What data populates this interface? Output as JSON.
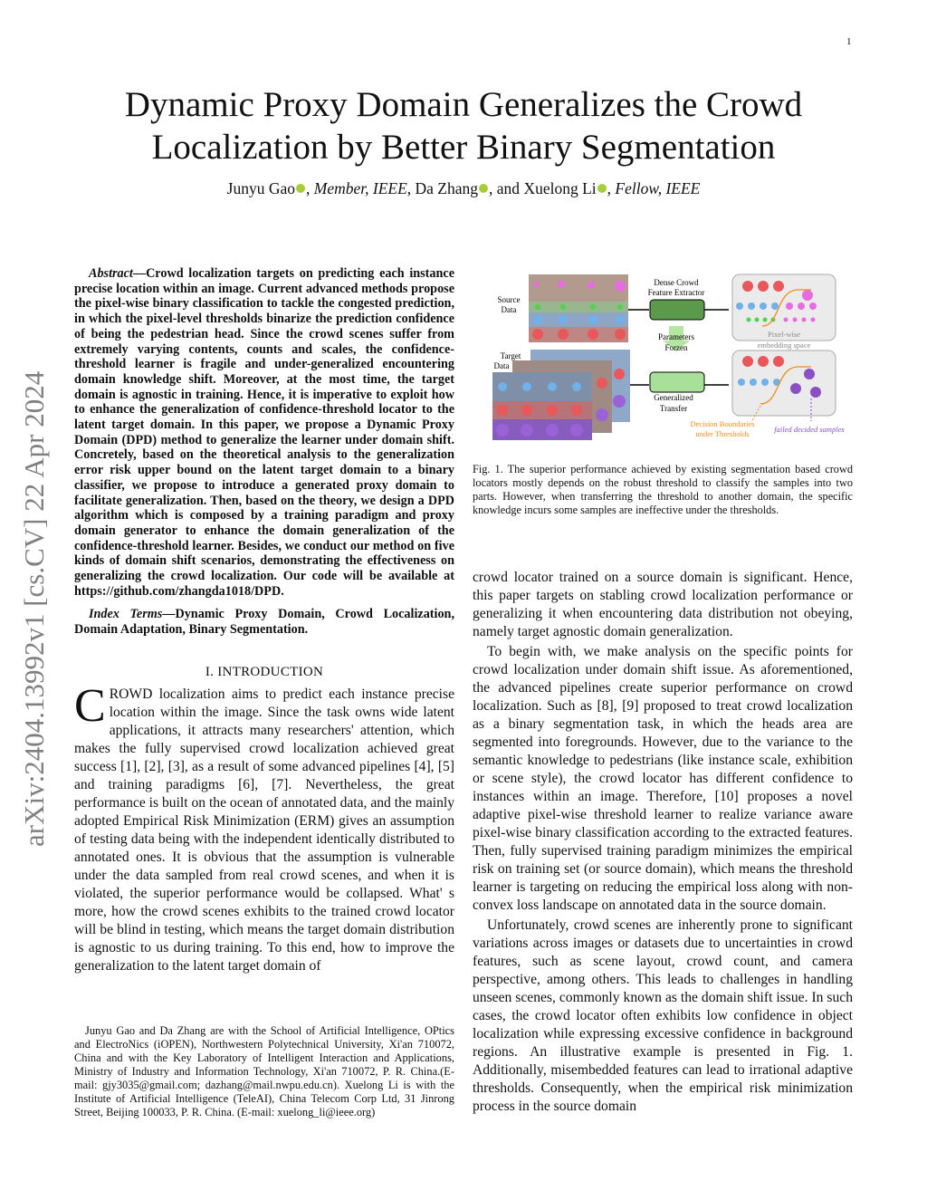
{
  "page_number": "1",
  "arxiv_stamp": "arXiv:2404.13992v1  [cs.CV]  22 Apr 2024",
  "title": "Dynamic Proxy Domain Generalizes the Crowd Localization by Better Binary Segmentation",
  "authors": {
    "a1": "Junyu Gao",
    "a1_role": "Member, IEEE",
    "a2": "Da Zhang",
    "a3": "Xuelong Li",
    "a3_role": "Fellow, IEEE",
    "and": "and"
  },
  "abstract": {
    "label": "Abstract",
    "text": "—Crowd localization targets on predicting each instance precise location within an image. Current advanced methods propose the pixel-wise binary classification to tackle the congested prediction, in which the pixel-level thresholds binarize the prediction confidence of being the pedestrian head. Since the crowd scenes suffer from extremely varying contents, counts and scales, the confidence-threshold learner is fragile and under-generalized encountering domain knowledge shift. Moreover, at the most time, the target domain is agnostic in training. Hence, it is imperative to exploit how to enhance the generalization of confidence-threshold locator to the latent target domain. In this paper, we propose a Dynamic Proxy Domain (DPD) method to generalize the learner under domain shift. Concretely, based on the theoretical analysis to the generalization error risk upper bound on the latent target domain to a binary classifier, we propose to introduce a generated proxy domain to facilitate generalization. Then, based on the theory, we design a DPD algorithm which is composed by a training paradigm and proxy domain generator to enhance the domain generalization of the confidence-threshold learner. Besides, we conduct our method on five kinds of domain shift scenarios, demonstrating the effectiveness on generalizing the crowd localization. Our code will be available at https://github.com/zhangda1018/DPD."
  },
  "index_terms": {
    "label": "Index Terms",
    "text": "—Dynamic Proxy Domain, Crowd Localization, Domain Adaptation, Binary Segmentation."
  },
  "section1": {
    "title": "I. INTRODUCTION",
    "dropcap": "C",
    "p1": "ROWD localization aims to predict each instance precise location within the image. Since the task owns wide latent applications, it attracts many researchers' attention, which makes the fully supervised crowd localization achieved great success [1], [2], [3], as a result of some advanced pipelines [4], [5] and training paradigms [6], [7]. Nevertheless, the great performance is built on the ocean of annotated data, and the mainly adopted Empirical Risk Minimization (ERM) gives an assumption of testing data being with the independent identically distributed to annotated ones. It is obvious that the assumption is vulnerable under the data sampled from real crowd scenes, and when it is violated, the superior performance would be collapsed. What' s more, how the crowd scenes exhibits to the trained crowd locator will be blind in testing, which means the target domain distribution is agnostic to us during training. To this end, how to improve the generalization to the latent target domain of",
    "p1_cont": "crowd locator trained on a source domain is significant. Hence, this paper targets on stabling crowd localization performance or generalizing it when encountering data distribution not obeying, namely target agnostic domain generalization.",
    "p2": "To begin with, we make analysis on the specific points for crowd localization under domain shift issue. As aforementioned, the advanced pipelines create superior performance on crowd localization. Such as [8], [9] proposed to treat crowd localization as a binary segmentation task, in which the heads area are segmented into foregrounds. However, due to the variance to the semantic knowledge to pedestrians (like instance scale, exhibition or scene style), the crowd locator has different confidence to instances within an image. Therefore, [10] proposes a novel adaptive pixel-wise threshold learner to realize variance aware pixel-wise binary classification according to the extracted features. Then, fully supervised training paradigm minimizes the empirical risk on training set (or source domain), which means the threshold learner is targeting on reducing the empirical loss along with non-convex loss landscape on annotated data in the source domain.",
    "p3": "Unfortunately, crowd scenes are inherently prone to significant variations across images or datasets due to uncertainties in crowd features, such as scene layout, crowd count, and camera perspective, among others. This leads to challenges in handling unseen scenes, commonly known as the domain shift issue. In such cases, the crowd locator often exhibits low confidence in object localization while expressing excessive confidence in background regions. An illustrative example is presented in Fig. 1. Additionally, misembedded features can lead to irrational adaptive thresholds. Consequently, when the empirical risk minimization process in the source domain"
  },
  "footnote": "Junyu Gao and Da Zhang are with the School of Artificial Intelligence, OPtics and ElectroNics (iOPEN), Northwestern Polytechnical University, Xi'an 710072, China and with the Key Laboratory of Intelligent Interaction and Applications, Ministry of Industry and Information Technology, Xi'an 710072, P. R. China.(E-mail: gjy3035@gmail.com; dazhang@mail.nwpu.edu.cn). Xuelong Li is with the Institute of Artificial Intelligence (TeleAI), China Telecom Corp Ltd, 31 Jinrong Street, Beijing 100033, P. R. China. (E-mail: xuelong_li@ieee.org)",
  "figure": {
    "source_label_1": "Source",
    "source_label_2": "Data",
    "target_label_1": "Target",
    "target_label_2": "Data",
    "extractor_1": "Dense Crowd",
    "extractor_2": "Feature Extractor",
    "frozen_1": "Parameters",
    "frozen_2": "Forzen",
    "transfer_1": "Generalized",
    "transfer_2": "Transfer",
    "embed_1": "Pixel-wise",
    "embed_2": "embedding space",
    "boundary_1": "Decision Boundaries",
    "boundary_2": "under Thresholds",
    "failed": "failed decided samples",
    "colors": {
      "red": "#e8585a",
      "blue": "#6fb1e8",
      "green": "#4fd34f",
      "pink": "#e86ce0",
      "purple": "#8a4fc2",
      "orange": "#f08a1c",
      "extractor": "#5a9a4a"
    }
  },
  "caption": "Fig. 1.   The superior performance achieved by existing segmentation based crowd locators mostly depends on the robust threshold to classify the samples into two parts. However, when transferring the threshold to another domain, the specific knowledge incurs some samples are ineffective under the thresholds."
}
